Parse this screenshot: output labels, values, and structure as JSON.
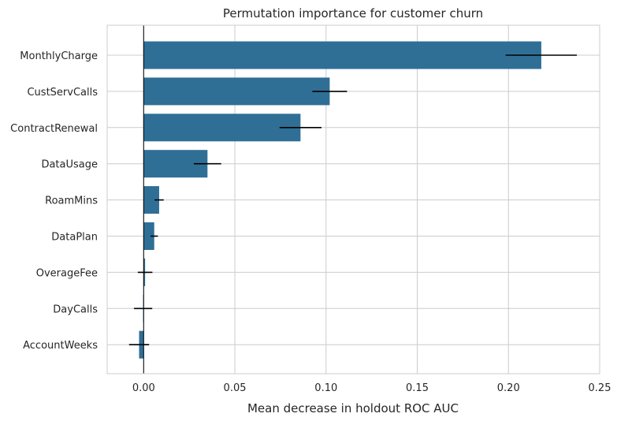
{
  "chart_data": {
    "type": "bar",
    "orientation": "horizontal",
    "title": "Permutation importance for customer churn",
    "xlabel": "Mean decrease in holdout ROC AUC",
    "ylabel": "",
    "xlim": [
      -0.02,
      0.25
    ],
    "xticks": [
      0.0,
      0.05,
      0.1,
      0.15,
      0.2,
      0.25
    ],
    "xtick_labels": [
      "0.00",
      "0.05",
      "0.10",
      "0.15",
      "0.20",
      "0.25"
    ],
    "grid": true,
    "bar_color": "#2f6f96",
    "error_color": "#000000",
    "zero_line_color": "#000000",
    "categories": [
      "MonthlyCharge",
      "CustServCalls",
      "ContractRenewal",
      "DataUsage",
      "RoamMins",
      "DataPlan",
      "OverageFee",
      "DayCalls",
      "AccountWeeks"
    ],
    "values": [
      0.218,
      0.102,
      0.086,
      0.035,
      0.0085,
      0.0058,
      0.0008,
      -0.0003,
      -0.0025
    ],
    "errors": [
      0.0195,
      0.0095,
      0.0115,
      0.0075,
      0.0025,
      0.002,
      0.004,
      0.005,
      0.0055
    ]
  }
}
